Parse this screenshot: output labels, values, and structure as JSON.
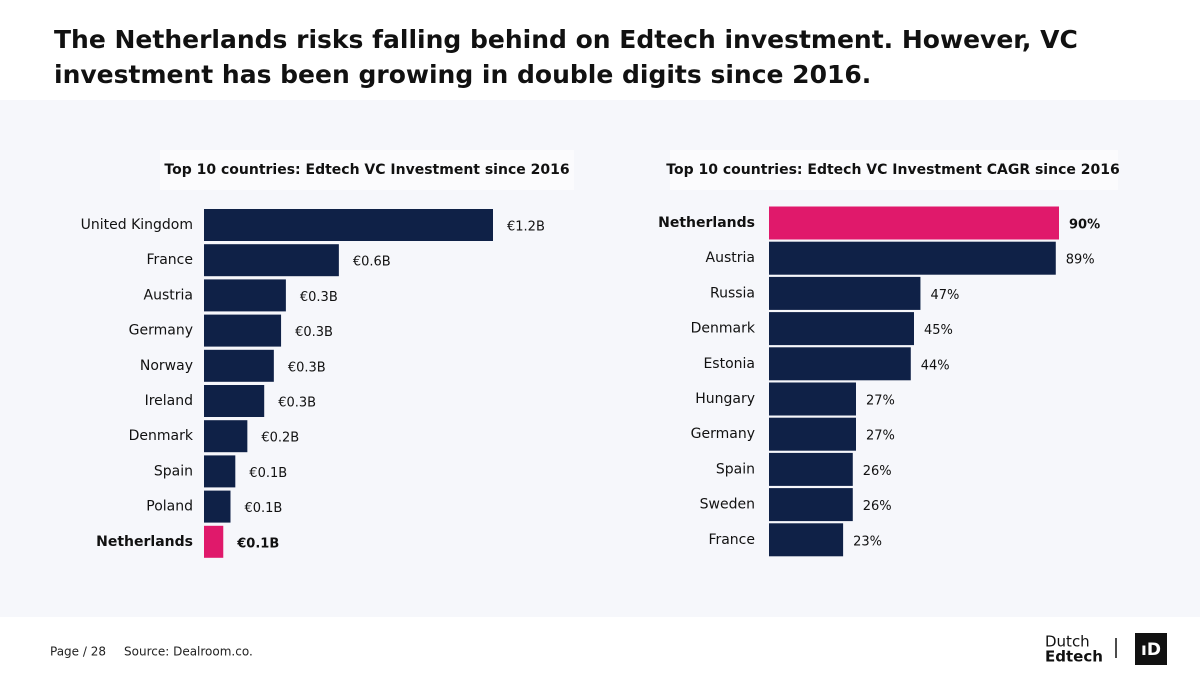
{
  "title": "The Netherlands risks falling behind on Edtech investment. However, VC investment has been growing in double digits since 2016.",
  "chart_data": [
    {
      "type": "hbar",
      "title": "Top 10 countries: Edtech VC Investment since 2016",
      "categories": [
        "United Kingdom",
        "France",
        "Austria",
        "Germany",
        "Norway",
        "Ireland",
        "Denmark",
        "Spain",
        "Poland",
        "Netherlands"
      ],
      "values": [
        1.2,
        0.56,
        0.34,
        0.32,
        0.29,
        0.25,
        0.18,
        0.13,
        0.11,
        0.08
      ],
      "value_labels": [
        "€1.2B",
        "€0.6B",
        "€0.3B",
        "€0.3B",
        "€0.3B",
        "€0.3B",
        "€0.2B",
        "€0.1B",
        "€0.1B",
        "€0.1B"
      ],
      "color": "#0f2147",
      "highlight": "Netherlands",
      "highlight_color": "#e0196b"
    },
    {
      "type": "hbar",
      "title": "Top 10 countries: Edtech VC Investment CAGR since 2016",
      "categories": [
        "Netherlands",
        "Austria",
        "Russia",
        "Denmark",
        "Estonia",
        "Hungary",
        "Germany",
        "Spain",
        "Sweden",
        "France"
      ],
      "values": [
        90,
        89,
        47,
        45,
        44,
        27,
        27,
        26,
        26,
        23
      ],
      "value_labels": [
        "90%",
        "89%",
        "47%",
        "45%",
        "44%",
        "27%",
        "27%",
        "26%",
        "26%",
        "23%"
      ],
      "color": "#0f2147",
      "highlight": "Netherlands",
      "highlight_color": "#e0196b"
    }
  ],
  "footer": {
    "page": "Page / 28",
    "source": "Source: Dealroom.co.",
    "logo_top": "Dutch",
    "logo_bottom": "Edtech",
    "logo_mark": "ıD"
  }
}
